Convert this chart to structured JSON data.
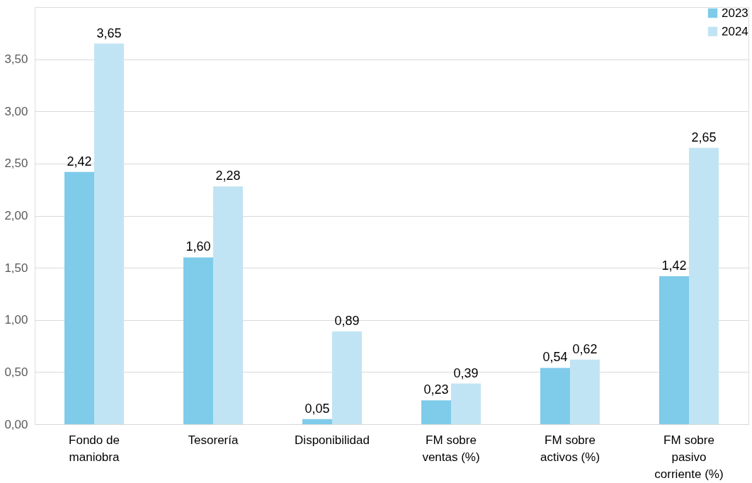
{
  "chart_data": {
    "type": "bar",
    "categories": [
      "Fondo de maniobra",
      "Tesorería",
      "Disponibilidad",
      "FM sobre ventas (%)",
      "FM sobre activos (%)",
      "FM sobre pasivo corriente (%)"
    ],
    "series": [
      {
        "name": "2023",
        "color": "#7fcbea",
        "values": [
          2.42,
          1.6,
          0.05,
          0.23,
          0.54,
          1.42
        ],
        "value_labels": [
          "2,42",
          "1,60",
          "0,05",
          "0,23",
          "0,54",
          "1,42"
        ]
      },
      {
        "name": "2024",
        "color": "#c1e4f4",
        "values": [
          3.65,
          2.28,
          0.89,
          0.39,
          0.62,
          2.65
        ],
        "value_labels": [
          "3,65",
          "2,28",
          "0,89",
          "0,39",
          "0,62",
          "2,65"
        ]
      }
    ],
    "ylim": [
      0,
      4
    ],
    "yticks": [
      {
        "value": 0,
        "label": "0,00"
      },
      {
        "value": 0.5,
        "label": "0,50"
      },
      {
        "value": 1,
        "label": "1,00"
      },
      {
        "value": 1.5,
        "label": "1,50"
      },
      {
        "value": 2,
        "label": "2,00"
      },
      {
        "value": 2.5,
        "label": "2,50"
      },
      {
        "value": 3,
        "label": "3,00"
      },
      {
        "value": 3.5,
        "label": "3,50"
      }
    ],
    "grid": "y",
    "legend": "top right"
  }
}
